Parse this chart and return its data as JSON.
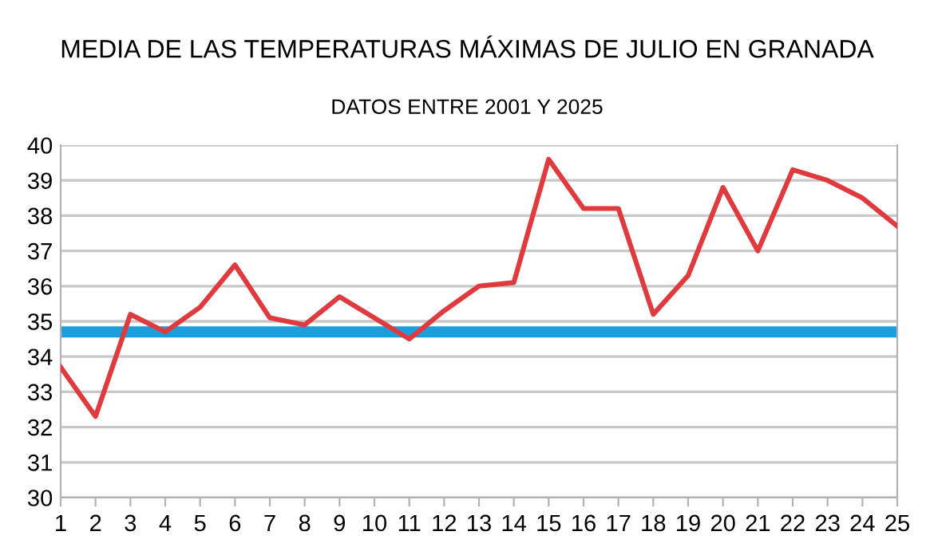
{
  "chart_data": {
    "type": "line",
    "title": "MEDIA DE LAS TEMPERATURAS MÁXIMAS DE JULIO EN GRANADA",
    "subtitle": "DATOS ENTRE 2001 Y 2025",
    "x": [
      1,
      2,
      3,
      4,
      5,
      6,
      7,
      8,
      9,
      10,
      11,
      12,
      13,
      14,
      15,
      16,
      17,
      18,
      19,
      20,
      21,
      22,
      23,
      24,
      25
    ],
    "series": [
      {
        "color": "#e0393e",
        "values": [
          33.7,
          32.3,
          35.2,
          34.7,
          35.4,
          36.6,
          35.1,
          34.9,
          35.7,
          35.1,
          34.5,
          35.3,
          36.0,
          36.1,
          39.6,
          38.2,
          38.2,
          35.2,
          36.3,
          38.8,
          37.0,
          39.3,
          39.0,
          38.5,
          37.7
        ]
      }
    ],
    "ref_lines": [
      {
        "axis": "y",
        "value": 34.7,
        "color": "#1a9fdc"
      }
    ],
    "xlim": [
      1,
      25
    ],
    "xticks": [
      1,
      2,
      3,
      4,
      5,
      6,
      7,
      8,
      9,
      10,
      11,
      12,
      13,
      14,
      15,
      16,
      17,
      18,
      19,
      20,
      21,
      22,
      23,
      24,
      25
    ],
    "ylim": [
      30,
      40
    ],
    "yticks": [
      30,
      31,
      32,
      33,
      34,
      35,
      36,
      37,
      38,
      39,
      40
    ],
    "grid": "y",
    "marker": "none",
    "line_style": "solid",
    "legend": false
  }
}
